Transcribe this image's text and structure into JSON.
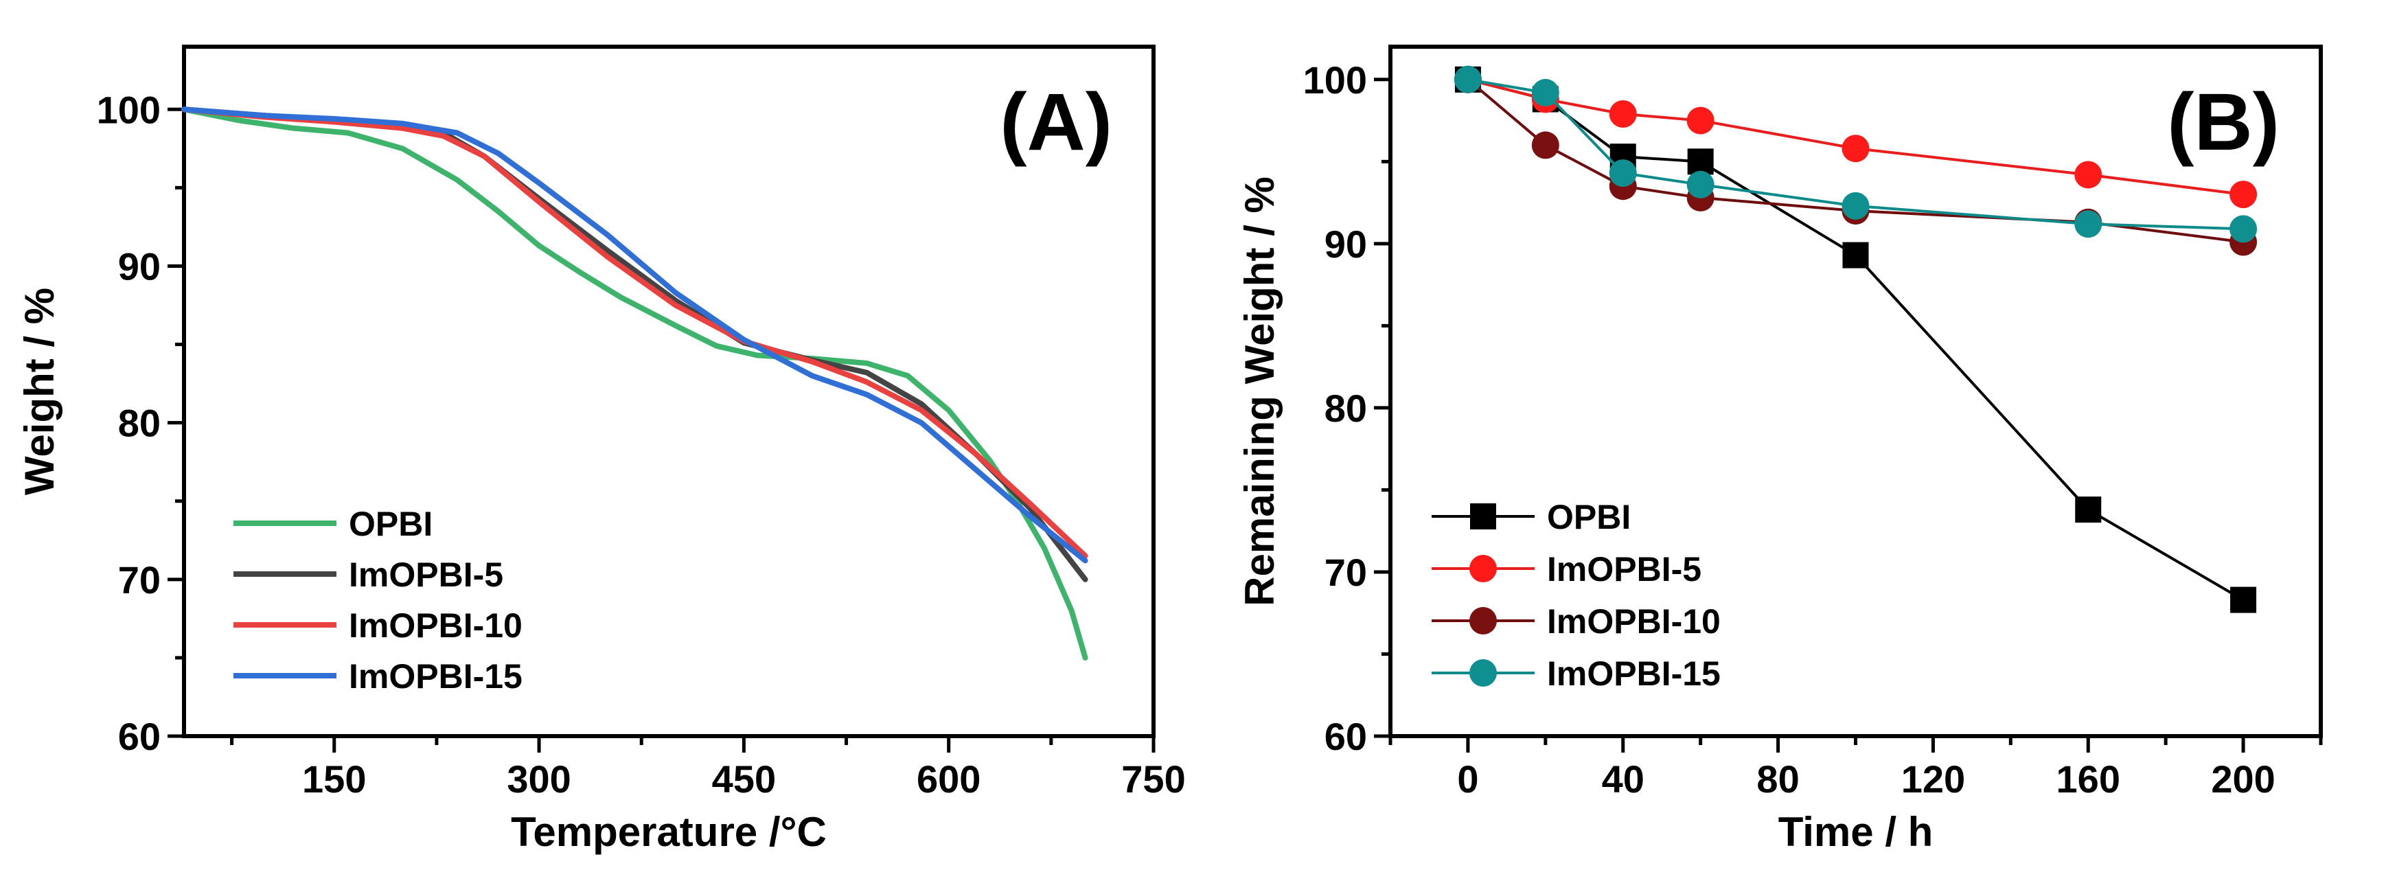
{
  "chart_data": [
    {
      "panel": "A",
      "type": "line",
      "panel_label": "(A)",
      "xlabel": "Temperature /°C",
      "ylabel": "Weight / %",
      "xlim": [
        40,
        750
      ],
      "ylim": [
        60,
        104
      ],
      "xticks": [
        150,
        300,
        450,
        600,
        750
      ],
      "yticks": [
        60,
        70,
        80,
        90,
        100
      ],
      "legend_position": "bottom-left",
      "series": [
        {
          "name": "OPBI",
          "color": "#3db36b",
          "x": [
            40,
            80,
            120,
            160,
            200,
            240,
            270,
            300,
            330,
            360,
            400,
            430,
            460,
            500,
            540,
            570,
            600,
            630,
            650,
            670,
            690,
            700
          ],
          "y": [
            100.0,
            99.3,
            98.8,
            98.5,
            97.5,
            95.5,
            93.5,
            91.3,
            89.6,
            88.0,
            86.2,
            84.9,
            84.3,
            84.1,
            83.8,
            83.0,
            80.8,
            77.6,
            75.0,
            72.0,
            68.0,
            65.0
          ]
        },
        {
          "name": "ImOPBI-5",
          "color": "#444444",
          "x": [
            40,
            100,
            150,
            200,
            230,
            260,
            300,
            350,
            400,
            450,
            500,
            540,
            580,
            620,
            660,
            700
          ],
          "y": [
            100.0,
            99.6,
            99.3,
            99.0,
            98.5,
            97.0,
            94.3,
            91.0,
            87.8,
            85.1,
            84.0,
            83.2,
            81.2,
            78.0,
            74.5,
            70.0
          ]
        },
        {
          "name": "ImOPBI-10",
          "color": "#e8413f",
          "x": [
            40,
            100,
            150,
            200,
            230,
            260,
            300,
            350,
            400,
            450,
            500,
            540,
            580,
            620,
            660,
            700
          ],
          "y": [
            100.0,
            99.5,
            99.2,
            98.8,
            98.3,
            97.0,
            94.1,
            90.6,
            87.5,
            85.2,
            83.9,
            82.6,
            80.8,
            78.0,
            74.8,
            71.5
          ]
        },
        {
          "name": "ImOPBI-15",
          "color": "#2f6fd6",
          "x": [
            40,
            100,
            150,
            200,
            240,
            270,
            300,
            350,
            400,
            450,
            500,
            540,
            580,
            620,
            660,
            700
          ],
          "y": [
            100.0,
            99.6,
            99.4,
            99.1,
            98.5,
            97.2,
            95.3,
            92.0,
            88.3,
            85.3,
            83.0,
            81.8,
            80.0,
            77.0,
            74.0,
            71.2
          ]
        }
      ]
    },
    {
      "panel": "B",
      "type": "line",
      "panel_label": "(B)",
      "xlabel": "Time / h",
      "ylabel": "Remaining Weight / %",
      "xlim": [
        -20,
        220
      ],
      "ylim": [
        60,
        102
      ],
      "xticks": [
        0,
        40,
        80,
        120,
        160,
        200
      ],
      "yticks": [
        60,
        70,
        80,
        90,
        100
      ],
      "legend_position": "bottom-left",
      "series": [
        {
          "name": "OPBI",
          "color": "#000000",
          "marker_fill": "#000000",
          "marker": "square",
          "x": [
            0,
            20,
            40,
            60,
            100,
            160,
            200
          ],
          "y": [
            100.0,
            98.8,
            95.3,
            95.0,
            89.3,
            73.8,
            68.3
          ]
        },
        {
          "name": "ImOPBI-5",
          "color": "#e81d1d",
          "marker_fill": "#ff1a1a",
          "marker": "circle",
          "x": [
            0,
            20,
            40,
            60,
            100,
            160,
            200
          ],
          "y": [
            100.0,
            98.8,
            97.9,
            97.5,
            95.8,
            94.2,
            93.0
          ]
        },
        {
          "name": "ImOPBI-10",
          "color": "#6e0d0d",
          "marker_fill": "#7a1010",
          "marker": "circle",
          "x": [
            0,
            20,
            40,
            60,
            100,
            160,
            200
          ],
          "y": [
            100.0,
            96.0,
            93.5,
            92.8,
            92.0,
            91.3,
            90.1
          ]
        },
        {
          "name": "ImOPBI-15",
          "color": "#0d8a8a",
          "marker_fill": "#0f8f8f",
          "marker": "circle",
          "x": [
            0,
            20,
            40,
            60,
            100,
            160,
            200
          ],
          "y": [
            100.0,
            99.2,
            94.3,
            93.6,
            92.3,
            91.2,
            90.9
          ]
        }
      ]
    }
  ]
}
